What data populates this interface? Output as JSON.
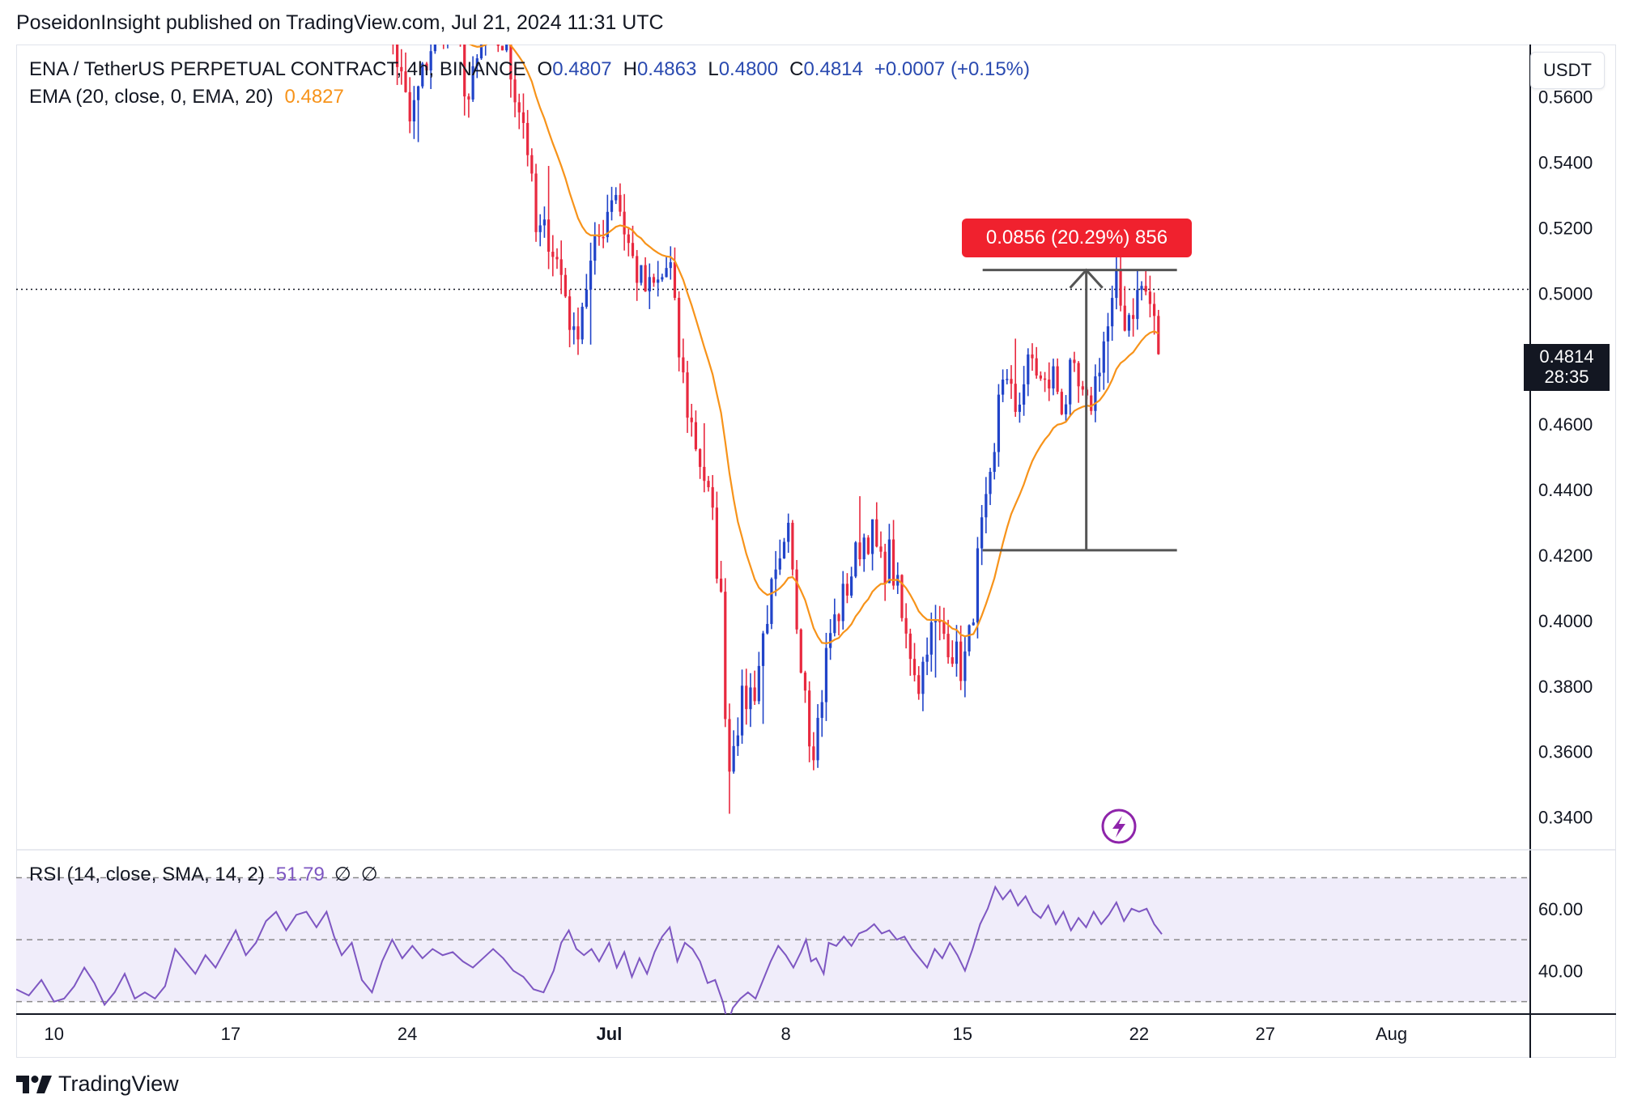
{
  "header": {
    "published_line": "PoseidonInsight published on TradingView.com, Jul 21, 2024 11:31 UTC"
  },
  "legend": {
    "symbol": "ENA / TetherUS PERPETUAL CONTRACT, 4h, BINANCE",
    "open_key": "O",
    "open": "0.4807",
    "high_key": "H",
    "high": "0.4863",
    "low_key": "L",
    "low": "0.4800",
    "close_key": "C",
    "close": "0.4814",
    "change": "+0.0007 (+0.15%)",
    "ema_label": "EMA (20, close, 0, EMA, 20)",
    "ema_value": "0.4827",
    "rsi_label": "RSI (14, close, SMA, 14, 2)",
    "rsi_value": "51.79",
    "rsi_null_1": "∅",
    "rsi_null_2": "∅"
  },
  "currency_button": "USDT",
  "last_price_label": {
    "price": "0.4814",
    "countdown": "28:35"
  },
  "measure_label": "0.0856 (20.29%) 856",
  "footer": {
    "brand": "TradingView",
    "logo_icon": "tradingview-logo-icon"
  },
  "colors": {
    "up": "#2144c9",
    "down": "#e8293f",
    "ema": "#f7931a",
    "rsi": "#7e57c2",
    "rsi_band": "#f0edfa",
    "measure": "#f0212e",
    "text": "#131722"
  },
  "chart_data": [
    {
      "type": "candlestick",
      "title": "ENA / TetherUS PERPETUAL CONTRACT, 4h, BINANCE",
      "timeframe": "4h",
      "y_axis_position": "right",
      "y_tick_labels": [
        "0.5600",
        "0.5400",
        "0.5200",
        "0.5000",
        "0.4800",
        "0.4600",
        "0.4400",
        "0.4200",
        "0.4000",
        "0.3800",
        "0.3600",
        "0.3400"
      ],
      "ylim": [
        0.33,
        0.576
      ],
      "x_tick_labels": [
        "10",
        "17",
        "24",
        "Jul",
        "8",
        "15",
        "22",
        "27",
        "Aug"
      ],
      "x_tick_days": [
        -21,
        -14,
        -7,
        1,
        8,
        15,
        22,
        27,
        32
      ],
      "xlim_days": [
        -22.5,
        37.5
      ],
      "last_close": 0.4814,
      "ema": {
        "name": "EMA (20, close, 0, EMA, 20)",
        "last": 0.4827
      },
      "reference_line": {
        "price": 0.5012,
        "style": "dotted"
      },
      "measure_tool": {
        "from_price": 0.4215,
        "to_price": 0.5071,
        "from_day": 15.8,
        "to_day": 23.5,
        "text": "0.0856 (20.29%) 856"
      },
      "close_path": [
        [
          -8.4,
          0.605
        ],
        [
          -7.5,
          0.575
        ],
        [
          -6.9,
          0.552
        ],
        [
          -6.1,
          0.575
        ],
        [
          -5.2,
          0.588
        ],
        [
          -4.6,
          0.558
        ],
        [
          -3.9,
          0.58
        ],
        [
          -3.2,
          0.576
        ],
        [
          -2.3,
          0.55
        ],
        [
          -1.9,
          0.518
        ],
        [
          -1.4,
          0.518
        ],
        [
          -0.8,
          0.503
        ],
        [
          -0.4,
          0.485
        ],
        [
          0.0,
          0.5
        ],
        [
          0.4,
          0.512
        ],
        [
          0.8,
          0.522
        ],
        [
          1.2,
          0.534
        ],
        [
          1.6,
          0.52
        ],
        [
          2.0,
          0.508
        ],
        [
          2.5,
          0.5
        ],
        [
          3.0,
          0.503
        ],
        [
          3.4,
          0.51
        ],
        [
          3.7,
          0.485
        ],
        [
          4.1,
          0.465
        ],
        [
          4.5,
          0.452
        ],
        [
          4.8,
          0.443
        ],
        [
          5.1,
          0.43
        ],
        [
          5.5,
          0.4
        ],
        [
          5.7,
          0.35
        ],
        [
          5.9,
          0.365
        ],
        [
          6.3,
          0.375
        ],
        [
          6.8,
          0.38
        ],
        [
          7.3,
          0.405
        ],
        [
          7.8,
          0.415
        ],
        [
          8.1,
          0.425
        ],
        [
          8.5,
          0.395
        ],
        [
          8.8,
          0.38
        ],
        [
          9.0,
          0.36
        ],
        [
          9.3,
          0.37
        ],
        [
          9.7,
          0.395
        ],
        [
          10.2,
          0.405
        ],
        [
          10.6,
          0.415
        ],
        [
          11.0,
          0.425
        ],
        [
          11.4,
          0.427
        ],
        [
          11.8,
          0.415
        ],
        [
          12.1,
          0.42
        ],
        [
          12.4,
          0.41
        ],
        [
          12.7,
          0.395
        ],
        [
          13.0,
          0.39
        ],
        [
          13.3,
          0.38
        ],
        [
          13.6,
          0.395
        ],
        [
          14.0,
          0.398
        ],
        [
          14.4,
          0.395
        ],
        [
          14.8,
          0.388
        ],
        [
          15.0,
          0.385
        ],
        [
          15.3,
          0.395
        ],
        [
          15.7,
          0.425
        ],
        [
          16.0,
          0.435
        ],
        [
          16.3,
          0.45
        ],
        [
          16.5,
          0.48
        ],
        [
          16.8,
          0.47
        ],
        [
          17.1,
          0.465
        ],
        [
          17.5,
          0.475
        ],
        [
          17.8,
          0.48
        ],
        [
          18.2,
          0.47
        ],
        [
          18.6,
          0.475
        ],
        [
          19.0,
          0.465
        ],
        [
          19.3,
          0.475
        ],
        [
          19.6,
          0.47
        ],
        [
          19.9,
          0.463
        ],
        [
          20.2,
          0.47
        ],
        [
          20.5,
          0.483
        ],
        [
          20.8,
          0.49
        ],
        [
          21.1,
          0.502
        ],
        [
          21.4,
          0.492
        ],
        [
          21.7,
          0.495
        ],
        [
          22.1,
          0.502
        ],
        [
          22.4,
          0.498
        ],
        [
          22.6,
          0.49
        ],
        [
          22.8,
          0.4814
        ]
      ],
      "notable_extremes": {
        "low": {
          "day": 5.7,
          "price": 0.341
        },
        "high_right_side": {
          "day": 22.0,
          "price": 0.5071
        }
      }
    },
    {
      "type": "line",
      "title": "RSI (14, close, SMA, 14, 2)",
      "last_value": 51.79,
      "y_tick_labels": [
        "60.00",
        "40.00"
      ],
      "ylim": [
        26.0,
        79.0
      ],
      "bands": [
        70,
        50,
        30
      ],
      "xlim_days": [
        -22.5,
        37.5
      ],
      "series": [
        {
          "name": "RSI",
          "points": [
            [
              -22.5,
              34
            ],
            [
              -22.0,
              32
            ],
            [
              -21.5,
              37
            ],
            [
              -21.0,
              30
            ],
            [
              -20.6,
              31
            ],
            [
              -20.2,
              35
            ],
            [
              -19.8,
              41
            ],
            [
              -19.4,
              36
            ],
            [
              -19.0,
              29
            ],
            [
              -18.6,
              33
            ],
            [
              -18.2,
              39
            ],
            [
              -17.8,
              31
            ],
            [
              -17.4,
              33
            ],
            [
              -17.0,
              31
            ],
            [
              -16.6,
              35
            ],
            [
              -16.2,
              47
            ],
            [
              -15.8,
              43
            ],
            [
              -15.4,
              39
            ],
            [
              -15.0,
              45
            ],
            [
              -14.6,
              41
            ],
            [
              -14.2,
              47
            ],
            [
              -13.8,
              53
            ],
            [
              -13.4,
              45
            ],
            [
              -13.0,
              49
            ],
            [
              -12.6,
              56
            ],
            [
              -12.2,
              59
            ],
            [
              -11.8,
              53
            ],
            [
              -11.4,
              58
            ],
            [
              -11.0,
              59
            ],
            [
              -10.6,
              54
            ],
            [
              -10.2,
              59
            ],
            [
              -9.9,
              51
            ],
            [
              -9.6,
              45
            ],
            [
              -9.2,
              49
            ],
            [
              -8.8,
              37
            ],
            [
              -8.4,
              33
            ],
            [
              -8.0,
              43
            ],
            [
              -7.6,
              50
            ],
            [
              -7.2,
              44
            ],
            [
              -6.8,
              48
            ],
            [
              -6.4,
              44
            ],
            [
              -6.0,
              47
            ],
            [
              -5.6,
              45
            ],
            [
              -5.2,
              46
            ],
            [
              -4.8,
              43
            ],
            [
              -4.4,
              41
            ],
            [
              -4.0,
              44
            ],
            [
              -3.6,
              47
            ],
            [
              -3.2,
              44
            ],
            [
              -2.8,
              40
            ],
            [
              -2.4,
              38
            ],
            [
              -2.0,
              34
            ],
            [
              -1.6,
              33
            ],
            [
              -1.2,
              40
            ],
            [
              -0.9,
              49
            ],
            [
              -0.6,
              53
            ],
            [
              -0.3,
              47
            ],
            [
              0.0,
              45
            ],
            [
              0.3,
              47
            ],
            [
              0.6,
              43
            ],
            [
              1.0,
              49
            ],
            [
              1.3,
              41
            ],
            [
              1.6,
              46
            ],
            [
              1.9,
              38
            ],
            [
              2.2,
              44
            ],
            [
              2.5,
              39
            ],
            [
              2.8,
              46
            ],
            [
              3.1,
              51
            ],
            [
              3.4,
              54
            ],
            [
              3.7,
              43
            ],
            [
              4.0,
              49
            ],
            [
              4.3,
              47
            ],
            [
              4.6,
              43
            ],
            [
              4.9,
              36
            ],
            [
              5.2,
              37
            ],
            [
              5.5,
              30
            ],
            [
              5.7,
              23
            ],
            [
              5.9,
              28
            ],
            [
              6.2,
              31
            ],
            [
              6.5,
              33
            ],
            [
              6.8,
              31
            ],
            [
              7.1,
              37
            ],
            [
              7.4,
              43
            ],
            [
              7.7,
              48
            ],
            [
              8.0,
              45
            ],
            [
              8.3,
              41
            ],
            [
              8.6,
              46
            ],
            [
              8.8,
              50
            ],
            [
              9.0,
              43
            ],
            [
              9.2,
              44
            ],
            [
              9.5,
              39
            ],
            [
              9.7,
              49
            ],
            [
              10.0,
              48
            ],
            [
              10.3,
              51
            ],
            [
              10.6,
              48
            ],
            [
              10.9,
              52
            ],
            [
              11.2,
              53
            ],
            [
              11.5,
              55
            ],
            [
              11.8,
              52
            ],
            [
              12.1,
              53
            ],
            [
              12.4,
              50
            ],
            [
              12.7,
              51
            ],
            [
              13.0,
              47
            ],
            [
              13.3,
              44
            ],
            [
              13.6,
              41
            ],
            [
              13.9,
              47
            ],
            [
              14.2,
              44
            ],
            [
              14.5,
              49
            ],
            [
              14.8,
              45
            ],
            [
              15.1,
              40
            ],
            [
              15.4,
              47
            ],
            [
              15.7,
              55
            ],
            [
              16.0,
              60
            ],
            [
              16.3,
              67
            ],
            [
              16.6,
              63
            ],
            [
              16.9,
              66
            ],
            [
              17.2,
              61
            ],
            [
              17.5,
              64
            ],
            [
              17.8,
              59
            ],
            [
              18.1,
              57
            ],
            [
              18.4,
              61
            ],
            [
              18.7,
              55
            ],
            [
              19.0,
              59
            ],
            [
              19.3,
              53
            ],
            [
              19.6,
              57
            ],
            [
              19.9,
              54
            ],
            [
              20.2,
              59
            ],
            [
              20.5,
              55
            ],
            [
              20.8,
              58
            ],
            [
              21.1,
              62
            ],
            [
              21.4,
              56
            ],
            [
              21.7,
              60
            ],
            [
              22.0,
              59
            ],
            [
              22.3,
              60
            ],
            [
              22.6,
              55
            ],
            [
              22.9,
              51.79
            ]
          ]
        }
      ]
    }
  ]
}
